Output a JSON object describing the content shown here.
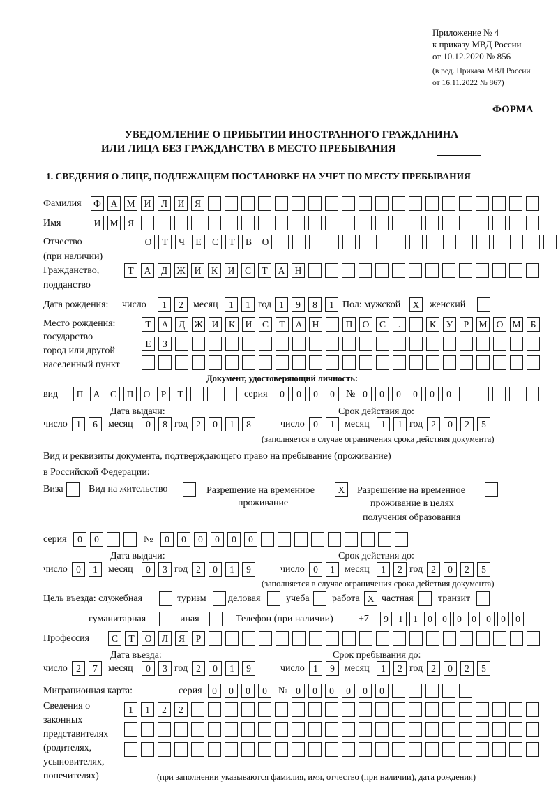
{
  "header": {
    "appendix": "Приложение № 4",
    "order": "к приказу МВД России",
    "order_date": "от 10.12.2020 № 856",
    "edition1": "(в ред. Приказа МВД России",
    "edition2": "от 16.11.2022 № 867)",
    "form": "ФОРМА",
    "title1": "УВЕДОМЛЕНИЕ О ПРИБЫТИИ ИНОСТРАННОГО ГРАЖДАНИНА",
    "title2": "ИЛИ ЛИЦА БЕЗ ГРАЖДАНСТВА В МЕСТО ПРЕБЫВАНИЯ",
    "section1": "1. СВЕДЕНИЯ О ЛИЦЕ, ПОДЛЕЖАЩЕМ ПОСТАНОВКЕ НА УЧЕТ ПО МЕСТУ ПРЕБЫВАНИЯ"
  },
  "labels": {
    "surname": "Фамилия",
    "name": "Имя",
    "patronymic1": "Отчество",
    "patronymic2": "(при наличии)",
    "citizenship1": "Гражданство,",
    "citizenship2": "подданство",
    "birth_date": "Дата рождения:",
    "day": "число",
    "month": "месяц",
    "year": "год",
    "sex": "Пол: мужской",
    "female": "женский",
    "birthplace1": "Место рождения:",
    "birthplace2": "государство",
    "birthplace3": "город или другой",
    "birthplace4": "населенный пункт",
    "id_doc": "Документ, удостоверяющий личность:",
    "kind": "вид",
    "series": "серия",
    "number": "№",
    "issue_date": "Дата выдачи:",
    "valid_until": "Срок действия до:",
    "valid_note": "(заполняется в случае ограничения срока действия документа)",
    "right_doc1": "Вид и реквизиты документа, подтверждающего право на пребывание (проживание)",
    "right_doc2": "в Российской Федерации:",
    "visa": "Виза",
    "residence_permit": "Вид на жительство",
    "temp_residence1": "Разрешение на временное",
    "temp_residence2": "проживание",
    "temp_edu1": "Разрешение на временное",
    "temp_edu2": "проживание в целях",
    "temp_edu3": "получения образования",
    "purpose": "Цель въезда: служебная",
    "tourism": "туризм",
    "business": "деловая",
    "study": "учеба",
    "work": "работа",
    "private": "частная",
    "transit": "транзит",
    "humanitarian": "гуманитарная",
    "other": "иная",
    "phone": "Телефон (при наличии)",
    "phone_prefix": "+7",
    "profession": "Профессия",
    "entry_date": "Дата въезда:",
    "stay_until": "Срок пребывания до:",
    "migration_card": "Миграционная карта:",
    "reps1": "Сведения о",
    "reps2": "законных",
    "reps3": "представителях",
    "reps4": "(родителях,",
    "reps5": "усыновителях,",
    "reps6": "попечителях)",
    "reps_note": "(при заполнении указываются фамилия, имя, отчество (при наличии), дата рождения)"
  },
  "fields": {
    "surname": [
      "Ф",
      "А",
      "М",
      "И",
      "Л",
      "И",
      "Я",
      "",
      "",
      "",
      "",
      "",
      "",
      "",
      "",
      "",
      "",
      "",
      "",
      "",
      "",
      "",
      "",
      "",
      "",
      "",
      ""
    ],
    "name": [
      "И",
      "М",
      "Я",
      "",
      "",
      "",
      "",
      "",
      "",
      "",
      "",
      "",
      "",
      "",
      "",
      "",
      "",
      "",
      "",
      "",
      "",
      "",
      "",
      "",
      "",
      "",
      ""
    ],
    "patronymic": [
      "О",
      "Т",
      "Ч",
      "Е",
      "С",
      "Т",
      "В",
      "О",
      "",
      "",
      "",
      "",
      "",
      "",
      "",
      "",
      "",
      "",
      "",
      "",
      "",
      "",
      "",
      "",
      ""
    ],
    "citizenship": [
      "Т",
      "А",
      "Д",
      "Ж",
      "И",
      "К",
      "И",
      "С",
      "Т",
      "А",
      "Н",
      "",
      "",
      "",
      "",
      "",
      "",
      "",
      "",
      "",
      "",
      "",
      "",
      "",
      ""
    ],
    "birth_day": [
      "1",
      "2"
    ],
    "birth_month": [
      "1",
      "1"
    ],
    "birth_year": [
      "1",
      "9",
      "8",
      "1"
    ],
    "sex_male": [
      "X"
    ],
    "sex_female": [
      ""
    ],
    "birthplace_1": [
      "Т",
      "А",
      "Д",
      "Ж",
      "И",
      "К",
      "И",
      "С",
      "Т",
      "А",
      "Н",
      "",
      "П",
      "О",
      "С",
      ".",
      "",
      "К",
      "У",
      "Р",
      "М",
      "О",
      "М",
      "Б"
    ],
    "birthplace_2": [
      "Е",
      "З",
      "",
      "",
      "",
      "",
      "",
      "",
      "",
      "",
      "",
      "",
      "",
      "",
      "",
      "",
      "",
      "",
      "",
      "",
      "",
      "",
      "",
      ""
    ],
    "birthplace_3": [
      "",
      "",
      "",
      "",
      "",
      "",
      "",
      "",
      "",
      "",
      "",
      "",
      "",
      "",
      "",
      "",
      "",
      "",
      "",
      "",
      "",
      "",
      "",
      ""
    ],
    "doc_kind": [
      "П",
      "А",
      "С",
      "П",
      "О",
      "Р",
      "Т",
      "",
      "",
      ""
    ],
    "doc_series": [
      "0",
      "0",
      "0",
      "0"
    ],
    "doc_number": [
      "0",
      "0",
      "0",
      "0",
      "0",
      "0",
      "",
      "",
      "",
      "",
      ""
    ],
    "doc_issue_day": [
      "1",
      "6"
    ],
    "doc_issue_month": [
      "0",
      "8"
    ],
    "doc_issue_year": [
      "2",
      "0",
      "1",
      "8"
    ],
    "doc_valid_day": [
      "0",
      "1"
    ],
    "doc_valid_month": [
      "1",
      "1"
    ],
    "doc_valid_year": [
      "2",
      "0",
      "2",
      "5"
    ],
    "chk_visa": [
      ""
    ],
    "chk_residence_permit": [
      ""
    ],
    "chk_temp_residence": [
      "X"
    ],
    "chk_temp_edu": [
      ""
    ],
    "res_series": [
      "0",
      "0",
      "",
      ""
    ],
    "res_number": [
      "0",
      "0",
      "0",
      "0",
      "0",
      "0",
      "",
      "",
      "",
      "",
      "",
      "",
      "",
      "",
      ""
    ],
    "res_issue_day": [
      "0",
      "1"
    ],
    "res_issue_month": [
      "0",
      "3"
    ],
    "res_issue_year": [
      "2",
      "0",
      "1",
      "9"
    ],
    "res_valid_day": [
      "0",
      "1"
    ],
    "res_valid_month": [
      "1",
      "2"
    ],
    "res_valid_year": [
      "2",
      "0",
      "2",
      "5"
    ],
    "chk_official": [
      ""
    ],
    "chk_tourism": [
      ""
    ],
    "chk_business": [
      ""
    ],
    "chk_study": [
      ""
    ],
    "chk_work": [
      "X"
    ],
    "chk_private": [
      ""
    ],
    "chk_transit": [
      ""
    ],
    "chk_humanitarian": [
      ""
    ],
    "chk_other": [
      ""
    ],
    "phone": [
      "9",
      "1",
      "1",
      "0",
      "0",
      "0",
      "0",
      "0",
      "0",
      "0",
      ""
    ],
    "profession": [
      "С",
      "Т",
      "О",
      "Л",
      "Я",
      "Р",
      "",
      "",
      "",
      "",
      "",
      "",
      "",
      "",
      "",
      "",
      "",
      "",
      "",
      "",
      "",
      "",
      "",
      "",
      "",
      ""
    ],
    "entry_day": [
      "2",
      "7"
    ],
    "entry_month": [
      "0",
      "3"
    ],
    "entry_year": [
      "2",
      "0",
      "1",
      "9"
    ],
    "stay_day": [
      "1",
      "9"
    ],
    "stay_month": [
      "1",
      "2"
    ],
    "stay_year": [
      "2",
      "0",
      "2",
      "5"
    ],
    "mig_series": [
      "0",
      "0",
      "0",
      "0"
    ],
    "mig_number": [
      "0",
      "0",
      "0",
      "0",
      "0",
      "0",
      "",
      "",
      "",
      "",
      ""
    ],
    "reps_1": [
      "1",
      "1",
      "2",
      "2",
      "",
      "",
      "",
      "",
      "",
      "",
      "",
      "",
      "",
      "",
      "",
      "",
      "",
      "",
      "",
      "",
      "",
      "",
      "",
      "",
      ""
    ],
    "reps_2": [
      "",
      "",
      "",
      "",
      "",
      "",
      "",
      "",
      "",
      "",
      "",
      "",
      "",
      "",
      "",
      "",
      "",
      "",
      "",
      "",
      "",
      "",
      "",
      "",
      ""
    ],
    "reps_3": [
      "",
      "",
      "",
      "",
      "",
      "",
      "",
      "",
      "",
      "",
      "",
      "",
      "",
      "",
      "",
      "",
      "",
      "",
      "",
      "",
      "",
      "",
      "",
      "",
      ""
    ]
  }
}
